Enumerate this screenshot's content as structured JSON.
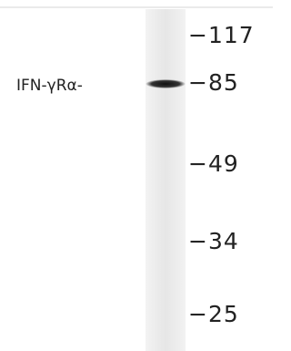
{
  "sample_label": "IFN-γRα-",
  "markers": [
    "−117",
    "−85",
    "−49",
    "−34",
    "−25"
  ]
}
